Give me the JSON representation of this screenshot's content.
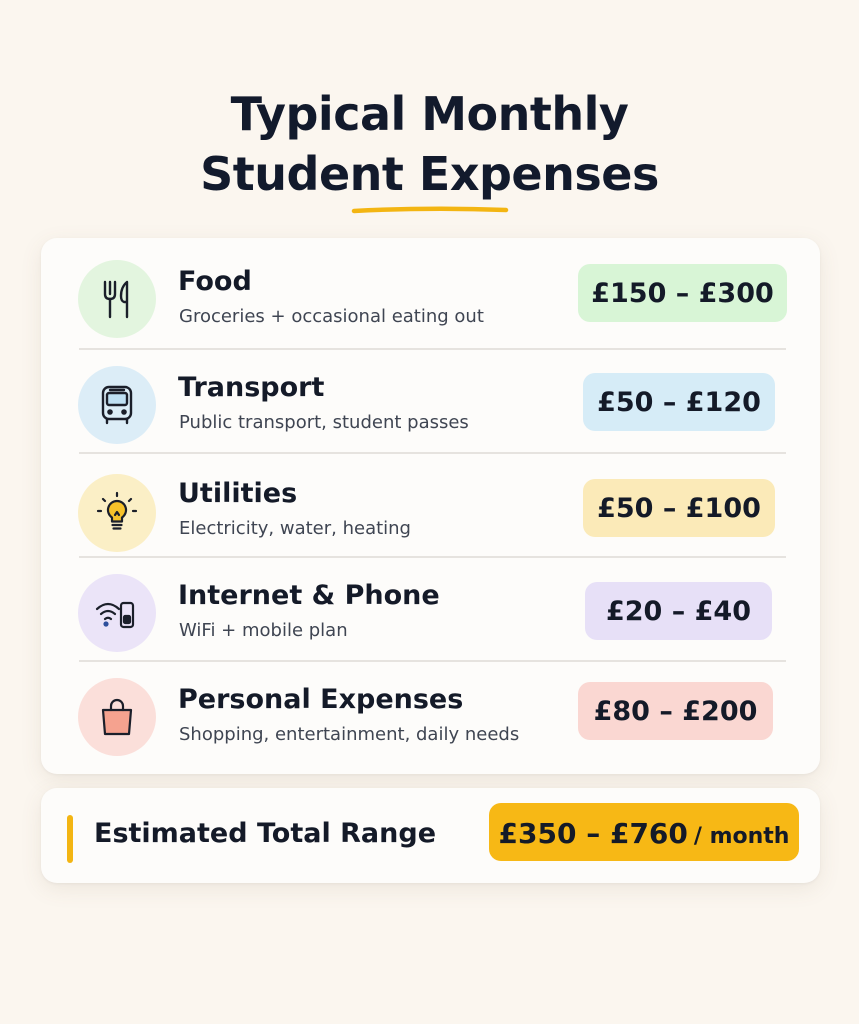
{
  "title": {
    "line1": "Typical Monthly",
    "line2": "Student Expenses"
  },
  "accent_color": "#f3b512",
  "expenses": [
    {
      "name": "Food",
      "description": "Groceries + occasional eating out",
      "range": "£150 – £300",
      "icon": "cutlery-icon",
      "color": "#d8f5d6",
      "circle": "#e3f5df"
    },
    {
      "name": "Transport",
      "description": "Public transport, student passes",
      "range": "£50 – £120",
      "icon": "bus-icon",
      "color": "#d6ecf7",
      "circle": "#dcedf7"
    },
    {
      "name": "Utilities",
      "description": "Electricity, water, heating",
      "range": "£50 – £100",
      "icon": "lightbulb-icon",
      "color": "#fbeab8",
      "circle": "#fbefc6"
    },
    {
      "name": "Internet & Phone",
      "description": "WiFi + mobile plan",
      "range": "£20 – £40",
      "icon": "wifi-phone-icon",
      "color": "#e7e0f7",
      "circle": "#ebe4f8"
    },
    {
      "name": "Personal Expenses",
      "description": "Shopping, entertainment, daily needs",
      "range": "£80 – £200",
      "icon": "shopping-bag-icon",
      "color": "#fad7d2",
      "circle": "#fbdfda"
    }
  ],
  "total": {
    "label": "Estimated Total Range",
    "amount": "£350 – £760",
    "period": "/ month"
  }
}
